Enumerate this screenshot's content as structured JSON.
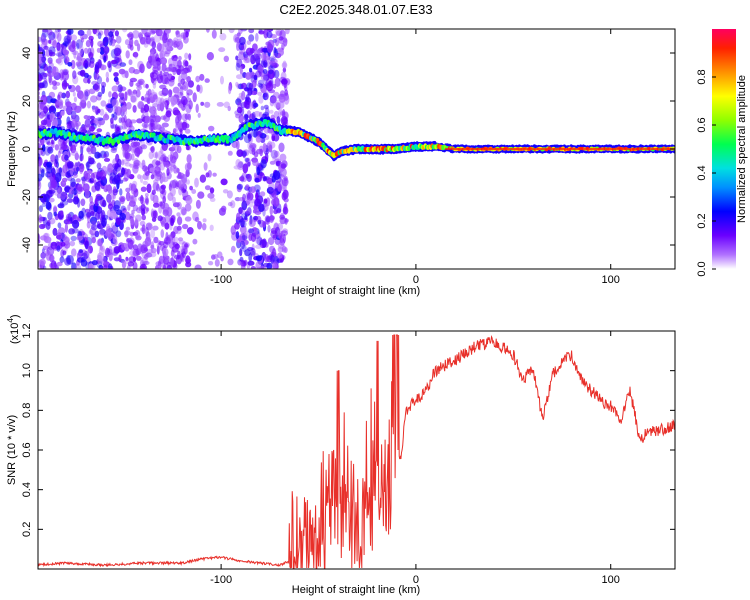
{
  "title": "C2E2.2025.348.01.07.E33",
  "colors": {
    "snr_line": "#e8302a",
    "frame": "#000000",
    "background": "#ffffff"
  },
  "chart_data": [
    {
      "type": "heatmap",
      "name": "spectrogram",
      "xlabel": "Height of straight line (km)",
      "ylabel": "Frequency (Hz)",
      "xlim": [
        -194,
        133
      ],
      "ylim": [
        -50,
        50
      ],
      "xticks": [
        -100,
        0,
        100
      ],
      "yticks": [
        -40,
        -20,
        0,
        20,
        40
      ],
      "colorbar": {
        "label": "Normalized spectral amplitude",
        "range": [
          0,
          1
        ],
        "ticks": [
          0.0,
          0.2,
          0.4,
          0.6,
          0.8
        ]
      },
      "ridge": {
        "description_points_x": [
          -194,
          -185,
          -175,
          -165,
          -155,
          -145,
          -135,
          -125,
          -115,
          -105,
          -95,
          -85,
          -75,
          -70,
          -60,
          -50,
          -42,
          -38,
          -30,
          -20,
          -10,
          0,
          10,
          20,
          40,
          60,
          80,
          100,
          133
        ],
        "description_points_y": [
          6,
          7,
          5,
          4,
          3,
          6,
          5,
          4,
          3,
          4,
          4,
          10,
          11,
          8,
          7,
          3,
          -3,
          -1,
          0,
          0,
          0,
          1,
          1,
          0,
          0,
          0,
          0,
          0,
          0
        ]
      },
      "regions": [
        {
          "label": "broadband scatter",
          "x_from": -194,
          "x_to": -66,
          "amplitude": 0.3
        },
        {
          "label": "tight ridge",
          "x_from": -66,
          "x_to": 133,
          "amplitude": 0.95
        }
      ]
    },
    {
      "type": "line",
      "name": "snr",
      "xlabel": "Height of straight line (km)",
      "ylabel": "SNR (10 * v/v)",
      "yscale_note": "(x10",
      "yscale_exp": "4",
      "xlim": [
        -194,
        133
      ],
      "ylim": [
        0,
        1.2
      ],
      "xticks": [
        -100,
        0,
        100
      ],
      "yticks": [
        0.2,
        0.4,
        0.6,
        0.8,
        1.0,
        1.2
      ],
      "ytick_labels": [
        "0.2",
        "0.4",
        "0.6",
        "0.8",
        "1.0",
        "1.2"
      ],
      "series": [
        {
          "name": "SNR",
          "x": [
            -194,
            -180,
            -160,
            -140,
            -120,
            -110,
            -100,
            -90,
            -80,
            -70,
            -62,
            -56,
            -50,
            -45,
            -42,
            -40,
            -38,
            -35,
            -32,
            -28,
            -25,
            -22,
            -18,
            -15,
            -12,
            -8,
            -5,
            0,
            5,
            10,
            20,
            30,
            40,
            50,
            55,
            60,
            65,
            70,
            75,
            80,
            85,
            90,
            95,
            100,
            105,
            110,
            115,
            120,
            125,
            133
          ],
          "y": [
            0.02,
            0.03,
            0.02,
            0.03,
            0.03,
            0.05,
            0.06,
            0.04,
            0.03,
            0.02,
            0.05,
            0.1,
            0.18,
            0.3,
            0.4,
            0.25,
            0.35,
            0.3,
            0.25,
            0.2,
            0.4,
            0.55,
            0.3,
            0.5,
            0.65,
            0.55,
            0.8,
            0.85,
            0.9,
            1.0,
            1.05,
            1.12,
            1.15,
            1.08,
            0.95,
            1.02,
            0.75,
            0.98,
            1.05,
            1.08,
            0.95,
            0.9,
            0.85,
            0.82,
            0.75,
            0.9,
            0.65,
            0.7,
            0.7,
            0.72
          ]
        }
      ]
    }
  ]
}
